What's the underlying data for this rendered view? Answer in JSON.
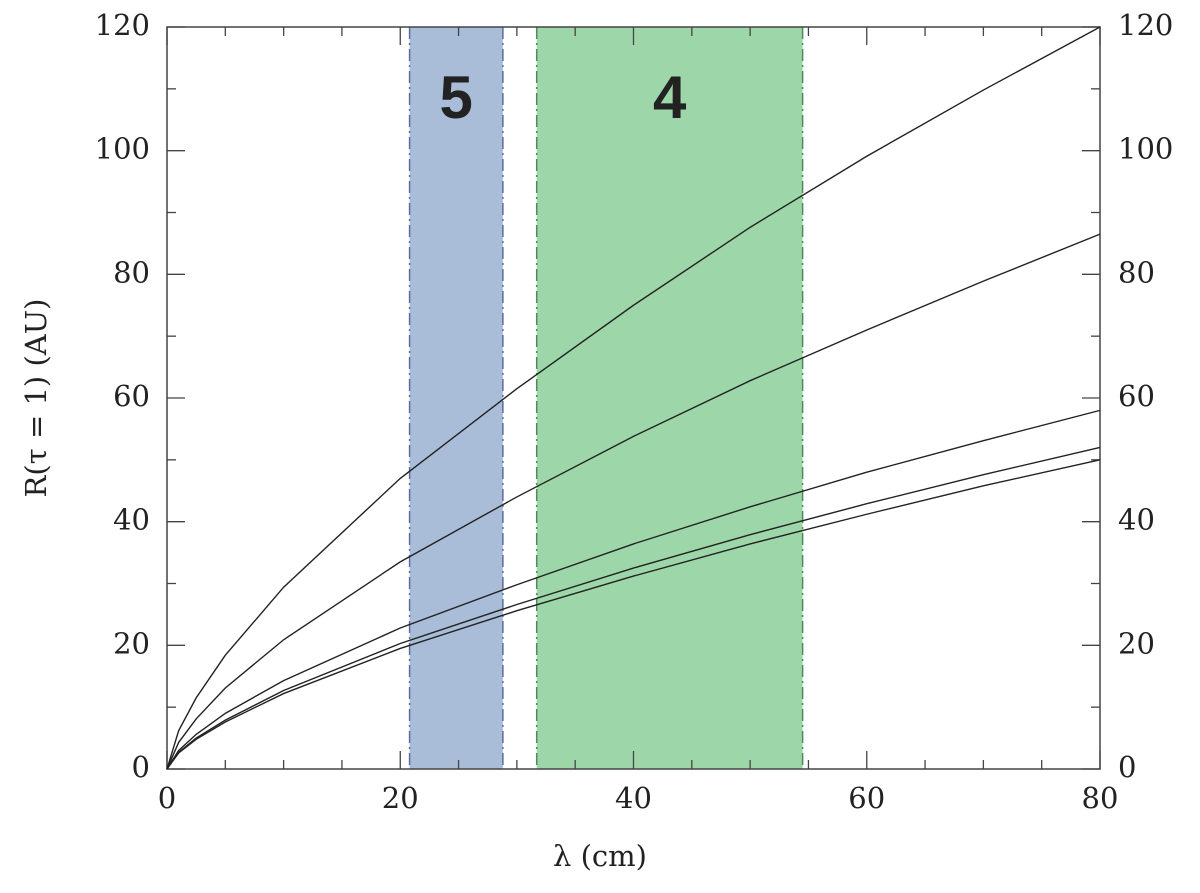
{
  "chart_data": {
    "type": "line",
    "xlabel": "λ (cm)",
    "ylabel": "R(τ = 1) (AU)",
    "xlim": [
      0,
      80
    ],
    "ylim": [
      0,
      120
    ],
    "xticks": [
      0,
      20,
      40,
      60,
      80
    ],
    "yticks": [
      0,
      20,
      40,
      60,
      80,
      100,
      120
    ],
    "xminorticks": [
      5,
      10,
      15,
      25,
      30,
      35,
      45,
      50,
      55,
      65,
      70,
      75
    ],
    "yminorticks": [
      10,
      30,
      50,
      70,
      90,
      110
    ],
    "x": [
      0,
      1,
      2.5,
      5,
      10,
      20,
      30,
      40,
      50,
      60,
      70,
      80
    ],
    "series": [
      {
        "color": "#222222",
        "values": [
          0,
          6.2,
          11.5,
          18.4,
          29.4,
          47,
          61.5,
          75,
          87.6,
          99.1,
          109.8,
          120
        ]
      },
      {
        "color": "#222222",
        "values": [
          0,
          4.3,
          8.1,
          13.1,
          20.9,
          33.5,
          44,
          53.8,
          62.8,
          71,
          78.9,
          86.5
        ]
      },
      {
        "color": "#222222",
        "values": [
          0,
          3.0,
          5.6,
          9.0,
          14.3,
          22.8,
          29.8,
          36.4,
          42.4,
          48.0,
          53.1,
          58
        ]
      },
      {
        "color": "#222222",
        "values": [
          0,
          2.7,
          5.0,
          7.9,
          12.7,
          20.3,
          26.6,
          32.5,
          37.9,
          42.9,
          47.6,
          52
        ]
      },
      {
        "color": "#222222",
        "values": [
          0,
          2.6,
          4.8,
          7.6,
          12.2,
          19.5,
          25.6,
          31.2,
          36.4,
          41.2,
          45.8,
          50
        ]
      }
    ],
    "bands": [
      {
        "x0": 20.8,
        "x1": 28.8,
        "label": "5",
        "color": "#a9bcd8",
        "edge_color": "#5a6e9a",
        "label_color": "#3a68a6"
      },
      {
        "x0": 31.7,
        "x1": 54.5,
        "label": "4",
        "color": "#9dd7a9",
        "edge_color": "#4e8a5a",
        "label_color": "#23a03a"
      }
    ]
  }
}
